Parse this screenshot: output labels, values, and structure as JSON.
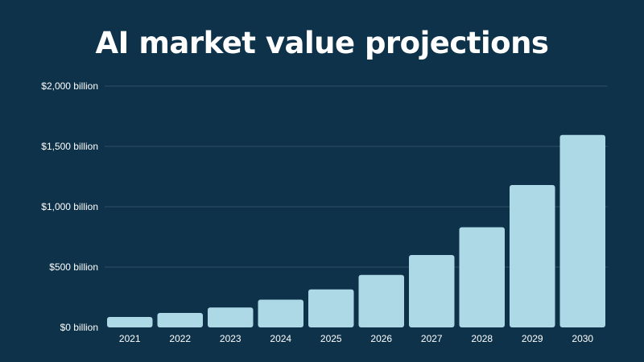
{
  "colors": {
    "background": "#0d3249",
    "bar": "#add8e6",
    "gridline": "#2e5066",
    "text": "#ffffff"
  },
  "chart_data": {
    "type": "bar",
    "title": "AI market value projections",
    "xlabel": "",
    "ylabel": "",
    "categories": [
      "2021",
      "2022",
      "2023",
      "2024",
      "2025",
      "2026",
      "2027",
      "2028",
      "2029",
      "2030"
    ],
    "values": [
      87,
      120,
      165,
      230,
      315,
      435,
      600,
      830,
      1180,
      1595
    ],
    "ylim": [
      0,
      2000
    ],
    "yticks": [
      0,
      500,
      1000,
      1500,
      2000
    ],
    "ytick_labels": [
      "$0 billion",
      "$500 billion",
      "$1,000 billion",
      "$1,500 billion",
      "$2,000 billion"
    ],
    "grid": true,
    "legend": "none"
  }
}
